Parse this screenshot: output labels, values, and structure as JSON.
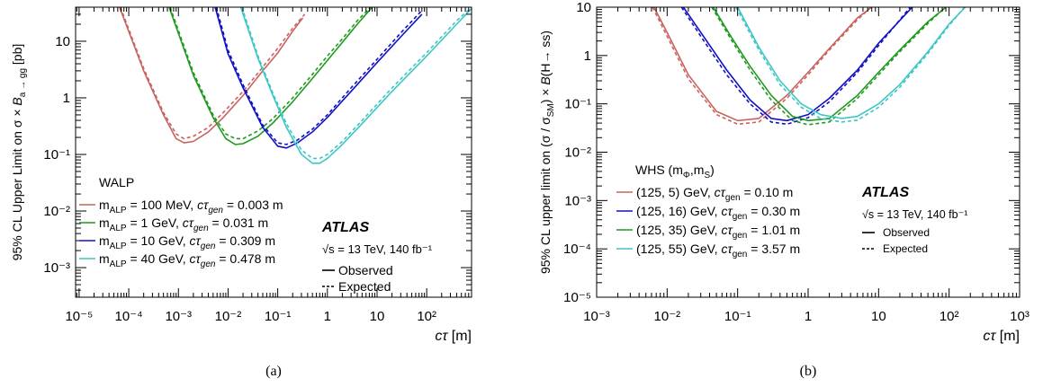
{
  "chart_data": [
    {
      "type": "line",
      "panel_label": "(a)",
      "xlabel": "cτ [m]",
      "ylabel": "95% CL Upper Limit on σ × B",
      "ylabel_sub": "a → gg",
      "ylabel_unit": "[pb]",
      "x_scale": "log",
      "y_scale": "log",
      "xlim": [
        8.5e-06,
        800
      ],
      "ylim": [
        0.0003,
        40
      ],
      "x_ticks": [
        "10⁻⁵",
        "10⁻⁴",
        "10⁻³",
        "10⁻²",
        "10⁻¹",
        "1",
        "10",
        "10²"
      ],
      "y_ticks": [
        "10⁻³",
        "10⁻²",
        "10⁻¹",
        "1",
        "10"
      ],
      "legend_title": "WALP",
      "legend_placement": "bottom-left",
      "atlas_label": "ATLAS",
      "energy_label": "√s = 13 TeV, 140 fb⁻¹",
      "style_legend": [
        "Observed",
        "Expected"
      ],
      "series": [
        {
          "name": "m_ALP = 100 MeV, cτ_gen = 0.003 m",
          "color": "#c8635f",
          "observed": {
            "x": [
              6.5e-05,
              0.0002,
              0.0005,
              0.0009,
              0.0013,
              0.002,
              0.004,
              0.008,
              0.02,
              0.05,
              0.1,
              0.2,
              0.32
            ],
            "y": [
              40,
              3,
              0.5,
              0.19,
              0.16,
              0.17,
              0.25,
              0.45,
              1.1,
              3.0,
              6.2,
              15,
              26
            ]
          },
          "expected": {
            "x": [
              6.8e-05,
              0.0002,
              0.0005,
              0.0009,
              0.0013,
              0.002,
              0.004,
              0.008,
              0.02,
              0.05,
              0.1,
              0.2,
              0.35
            ],
            "y": [
              40,
              3.3,
              0.55,
              0.23,
              0.19,
              0.21,
              0.3,
              0.55,
              1.3,
              3.5,
              7.5,
              17,
              30
            ]
          }
        },
        {
          "name": "m_ALP = 1 GeV, cτ_gen = 0.031 m",
          "color": "#1f9a1f",
          "observed": {
            "x": [
              0.00065,
              0.002,
              0.005,
              0.009,
              0.014,
              0.02,
              0.04,
              0.08,
              0.2,
              0.5,
              1,
              2,
              4,
              8
            ],
            "y": [
              40,
              2.5,
              0.45,
              0.19,
              0.15,
              0.155,
              0.21,
              0.36,
              0.85,
              2.2,
              4.6,
              9.5,
              20,
              40
            ]
          },
          "expected": {
            "x": [
              0.00068,
              0.002,
              0.005,
              0.009,
              0.014,
              0.02,
              0.04,
              0.08,
              0.2,
              0.5,
              1,
              2,
              4,
              7.5
            ],
            "y": [
              40,
              2.8,
              0.5,
              0.23,
              0.19,
              0.19,
              0.26,
              0.43,
              1.0,
              2.6,
              5.5,
              11,
              23,
              40
            ]
          }
        },
        {
          "name": "m_ALP = 10 GeV, cτ_gen = 0.309 m",
          "color": "#1010c8",
          "observed": {
            "x": [
              0.0055,
              0.01,
              0.02,
              0.05,
              0.1,
              0.15,
              0.25,
              0.5,
              1,
              3,
              10,
              30,
              80
            ],
            "y": [
              40,
              6,
              1.5,
              0.3,
              0.14,
              0.13,
              0.16,
              0.25,
              0.45,
              1.3,
              4.2,
              12,
              30
            ]
          },
          "expected": {
            "x": [
              0.0058,
              0.01,
              0.02,
              0.05,
              0.1,
              0.15,
              0.25,
              0.5,
              1,
              3,
              10,
              30,
              80
            ],
            "y": [
              40,
              7,
              1.7,
              0.33,
              0.16,
              0.15,
              0.18,
              0.28,
              0.5,
              1.5,
              4.8,
              14,
              35
            ]
          }
        },
        {
          "name": "m_ALP = 40 GeV, cτ_gen = 0.478 m",
          "color": "#3cc6c6",
          "observed": {
            "x": [
              0.018,
              0.04,
              0.08,
              0.15,
              0.3,
              0.5,
              0.7,
              1,
              2,
              5,
              20,
              100,
              400,
              800
            ],
            "y": [
              40,
              5,
              1.1,
              0.3,
              0.1,
              0.07,
              0.07,
              0.085,
              0.15,
              0.35,
              1.3,
              5.5,
              20,
              38
            ]
          },
          "expected": {
            "x": [
              0.019,
              0.04,
              0.08,
              0.15,
              0.3,
              0.5,
              0.7,
              1,
              2,
              5,
              20,
              100,
              400,
              800
            ],
            "y": [
              40,
              5.5,
              1.2,
              0.35,
              0.12,
              0.085,
              0.085,
              0.1,
              0.17,
              0.4,
              1.5,
              6.3,
              23,
              40
            ]
          }
        }
      ]
    },
    {
      "type": "line",
      "panel_label": "(b)",
      "xlabel": "cτ [m]",
      "ylabel": "95% CL upper limit on (σ / σ",
      "ylabel_sub": "SM",
      "ylabel_rest": ") × B(H→ ss)",
      "x_scale": "log",
      "y_scale": "log",
      "xlim": [
        0.001,
        1000
      ],
      "ylim": [
        1e-05,
        10
      ],
      "x_ticks": [
        "10⁻³",
        "10⁻²",
        "10⁻¹",
        "1",
        "10",
        "10²",
        "10³"
      ],
      "y_ticks": [
        "10⁻⁵",
        "10⁻⁴",
        "10⁻³",
        "10⁻²",
        "10⁻¹",
        "1",
        "10"
      ],
      "legend_title": "WHS (m",
      "legend_title_sub": "Φ",
      "legend_title_mid": ",m",
      "legend_title_sub2": "S",
      "legend_title_end": ")",
      "legend_placement": "bottom-left",
      "atlas_label": "ATLAS",
      "energy_label": "√s = 13 TeV, 140 fb⁻¹",
      "style_legend": [
        "Observed",
        "Expected"
      ],
      "series": [
        {
          "name": "(125, 5) GeV, cτ_gen = 0.10 m",
          "color": "#c8635f",
          "observed": {
            "x": [
              0.0065,
              0.01,
              0.02,
              0.05,
              0.1,
              0.2,
              0.5,
              1,
              2,
              5,
              8
            ],
            "y": [
              10,
              3,
              0.4,
              0.07,
              0.045,
              0.05,
              0.15,
              0.45,
              1.4,
              6,
              10
            ]
          },
          "expected": {
            "x": [
              0.0062,
              0.01,
              0.02,
              0.05,
              0.1,
              0.2,
              0.5,
              1,
              2,
              5,
              7.8
            ],
            "y": [
              10,
              2.5,
              0.33,
              0.06,
              0.038,
              0.042,
              0.13,
              0.4,
              1.3,
              5.5,
              10
            ]
          }
        },
        {
          "name": "(125, 16) GeV, cτ_gen = 0.30 m",
          "color": "#1010c8",
          "observed": {
            "x": [
              0.017,
              0.03,
              0.07,
              0.15,
              0.3,
              0.5,
              1,
              2,
              5,
              10,
              30
            ],
            "y": [
              10,
              3,
              0.5,
              0.12,
              0.05,
              0.045,
              0.06,
              0.13,
              0.5,
              1.8,
              10
            ]
          },
          "expected": {
            "x": [
              0.016,
              0.03,
              0.07,
              0.15,
              0.3,
              0.5,
              1,
              2,
              5,
              10,
              28
            ],
            "y": [
              10,
              2.5,
              0.4,
              0.1,
              0.042,
              0.038,
              0.052,
              0.11,
              0.45,
              1.6,
              10
            ]
          }
        },
        {
          "name": "(125, 35) GeV, cτ_gen = 1.01 m",
          "color": "#1f9a1f",
          "observed": {
            "x": [
              0.045,
              0.08,
              0.15,
              0.3,
              0.6,
              1,
              2,
              5,
              10,
              20,
              50,
              90
            ],
            "y": [
              10,
              2.5,
              0.6,
              0.15,
              0.055,
              0.045,
              0.05,
              0.15,
              0.45,
              1.3,
              5,
              10
            ]
          },
          "expected": {
            "x": [
              0.043,
              0.08,
              0.15,
              0.3,
              0.6,
              1,
              2,
              5,
              10,
              20,
              50,
              88
            ],
            "y": [
              10,
              2.2,
              0.5,
              0.12,
              0.045,
              0.037,
              0.042,
              0.13,
              0.4,
              1.2,
              4.6,
              10
            ]
          }
        },
        {
          "name": "(125, 55) GeV, cτ_gen = 3.57 m",
          "color": "#3cc6c6",
          "observed": {
            "x": [
              0.1,
              0.2,
              0.4,
              0.8,
              1.5,
              3,
              5,
              10,
              20,
              50,
              100,
              170
            ],
            "y": [
              10,
              1.5,
              0.3,
              0.1,
              0.06,
              0.05,
              0.055,
              0.1,
              0.25,
              1.2,
              4.5,
              10
            ]
          },
          "expected": {
            "x": [
              0.095,
              0.2,
              0.4,
              0.8,
              1.5,
              3,
              5,
              10,
              20,
              50,
              100,
              165
            ],
            "y": [
              10,
              1.3,
              0.25,
              0.085,
              0.05,
              0.042,
              0.046,
              0.085,
              0.22,
              1.1,
              4.2,
              10
            ]
          }
        }
      ]
    }
  ]
}
